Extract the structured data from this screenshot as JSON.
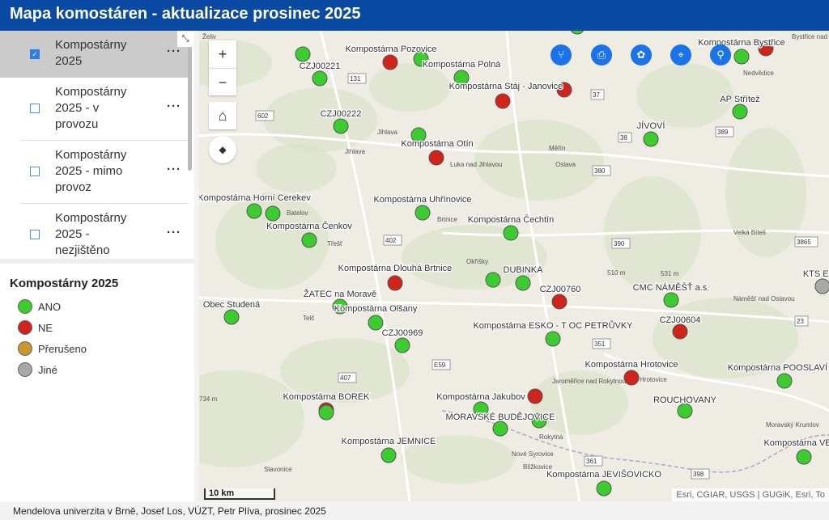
{
  "header": {
    "title": "Mapa komostáren - aktualizace prosinec 2025"
  },
  "layers": [
    {
      "label": "Kompostárny 2025",
      "checked": true
    },
    {
      "label": "Kompostárny 2025 - v provozu",
      "checked": false
    },
    {
      "label": "Kompostárny 2025 - mimo provoz",
      "checked": false
    },
    {
      "label": "Kompostárny 2025 - nezjištěno",
      "checked": false
    }
  ],
  "options_label": "···",
  "legend": {
    "title": "Kompostárny 2025",
    "items": [
      {
        "label": "ANO",
        "color": "#3ccc2f"
      },
      {
        "label": "NE",
        "color": "#d0231b"
      },
      {
        "label": "Přerušeno",
        "color": "#c8982f"
      },
      {
        "label": "Jiné",
        "color": "#a8a8a8"
      }
    ]
  },
  "controls": {
    "zoom_in": "+",
    "zoom_out": "−",
    "home": "⌂",
    "compass": "◆"
  },
  "tools": [
    "share-icon",
    "print-icon",
    "basemap-gallery-icon",
    "locate-icon",
    "search-icon"
  ],
  "points": [
    {
      "label": "",
      "status": "ANO"
    },
    {
      "label": "",
      "status": "ANO"
    },
    {
      "label": "CZJ00221",
      "status": "ANO"
    },
    {
      "label": "Kompostárna Pozovice",
      "status": "NE"
    },
    {
      "label": "Kompostárna Polná",
      "status": "ANO"
    },
    {
      "label": "",
      "status": "ANO"
    },
    {
      "label": "Kompostárna Stáj - Janovice",
      "status": "NE"
    },
    {
      "label": "",
      "status": "NE"
    },
    {
      "label": "CZJ00222",
      "status": "ANO"
    },
    {
      "label": "",
      "status": "ANO"
    },
    {
      "label": "Kompostárna Otín",
      "status": "NE"
    },
    {
      "label": "JÍVOVÍ",
      "status": "ANO"
    },
    {
      "label": "AP Střítež",
      "status": "ANO"
    },
    {
      "label": "Kompostárna Bystřice",
      "status": "ANO"
    },
    {
      "label": "",
      "status": "NE"
    },
    {
      "label": "Kompostárna Horní Cerekev",
      "status": "ANO"
    },
    {
      "label": "",
      "status": "ANO"
    },
    {
      "label": "Kompostárna Čenkov",
      "status": "ANO"
    },
    {
      "label": "Kompostárna Uhřínovice",
      "status": "ANO"
    },
    {
      "label": "Kompostárna Čechtín",
      "status": "ANO"
    },
    {
      "label": "Kompostárna Dlouhá Brtnice",
      "status": "NE"
    },
    {
      "label": "",
      "status": "ANO"
    },
    {
      "label": "DUBINKA",
      "status": "ANO"
    },
    {
      "label": "CZJ00760",
      "status": "NE"
    },
    {
      "label": "CMC NÁMĚŠŤ a.s.",
      "status": "ANO"
    },
    {
      "label": "KTS EKoI",
      "status": "Jiné"
    },
    {
      "label": "Obec Studená",
      "status": "ANO"
    },
    {
      "label": "ŽATEC na Moravě",
      "status": "ANO"
    },
    {
      "label": "Kompostárna Olšany",
      "status": "ANO"
    },
    {
      "label": "CZJ00969",
      "status": "ANO"
    },
    {
      "label": "Kompostárna ESKO - T OC PETRŮVKY",
      "status": "ANO"
    },
    {
      "label": "CZJ00604",
      "status": "NE"
    },
    {
      "label": "Kompostárna Hrotovice",
      "status": "NE"
    },
    {
      "label": "Kompostárna  POOSLAVÍ No",
      "status": "ANO"
    },
    {
      "label": "",
      "status": "NE"
    },
    {
      "label": "Kompostárna Jakubov",
      "status": "ANO"
    },
    {
      "label": "",
      "status": "ANO"
    },
    {
      "label": "MORAVSKÉ BUDĚJOVICE",
      "status": "ANO"
    },
    {
      "label": "ROUCHOVANY",
      "status": "ANO"
    },
    {
      "label": "",
      "status": "NE"
    },
    {
      "label": "Kompostárna BOREK",
      "status": "ANO"
    },
    {
      "label": "Kompostárna JEMNICE",
      "status": "ANO"
    },
    {
      "label": "Kompostárna VEDR",
      "status": "ANO"
    },
    {
      "label": "Kompostárna JEVIŠOVICKO",
      "status": "ANO"
    }
  ],
  "places": [
    "Želiv",
    "Jihlava",
    "Měřín",
    "Luka nad Jihlavou",
    "Batelov",
    "Třešť",
    "Brtnice",
    "Telč",
    "Okříšky",
    "Velká Bíteš",
    "Náměšť nad Oslavou",
    "Jaroměřice nad Rokytnou",
    "Hrotovice",
    "Moravský Krumlov",
    "Nové Syrovice",
    "Blížkovice",
    "Slavonice",
    "Nedvědice",
    "Bystřice nad",
    "Jihlava",
    "Oslava",
    "Rokytná",
    "510 m",
    "531 m",
    "734 m"
  ],
  "road_numbers": [
    "131",
    "602",
    "37",
    "38",
    "389",
    "380",
    "402",
    "390",
    "3865",
    "23",
    "351",
    "407",
    "E59",
    "361",
    "398"
  ],
  "scale": "10 km",
  "attribution": "Esri, CGIAR, USGS | GUGiK, Esri, To",
  "footer": "Mendelova univerzita v Brně, Josef Los, VÚZT, Petr Plíva, prosinec 2025"
}
